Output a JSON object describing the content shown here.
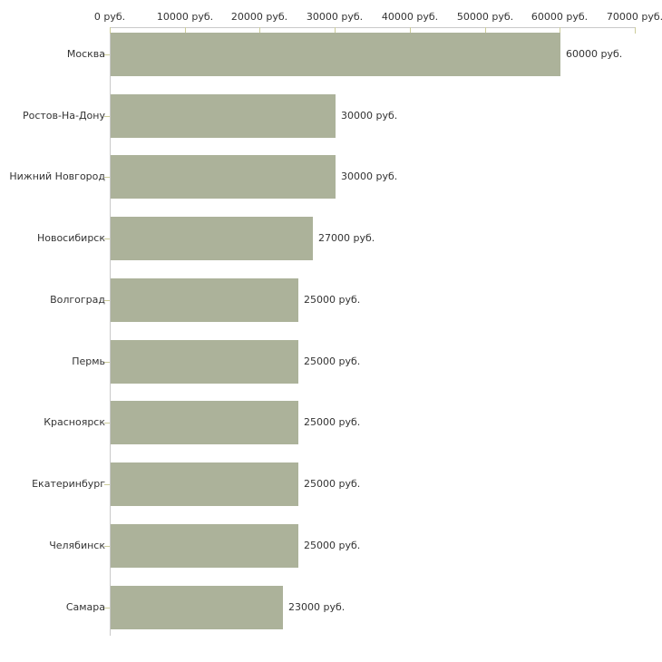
{
  "chart_data": {
    "type": "bar",
    "orientation": "horizontal",
    "categories": [
      "Москва",
      "Ростов-На-Дону",
      "Нижний Новгород",
      "Новосибирск",
      "Волгоград",
      "Пермь",
      "Красноярск",
      "Екатеринбург",
      "Челябинск",
      "Самара"
    ],
    "values": [
      60000,
      30000,
      30000,
      27000,
      25000,
      25000,
      25000,
      25000,
      25000,
      23000
    ],
    "value_labels": [
      "60000 руб.",
      "30000 руб.",
      "30000 руб.",
      "27000 руб.",
      "25000 руб.",
      "25000 руб.",
      "25000 руб.",
      "25000 руб.",
      "25000 руб.",
      "23000 руб."
    ],
    "x_ticks": [
      "0 руб.",
      "10000 руб.",
      "20000 руб.",
      "30000 руб.",
      "40000 руб.",
      "50000 руб.",
      "60000 руб.",
      "70000 руб."
    ],
    "x_tick_values": [
      0,
      10000,
      20000,
      30000,
      40000,
      50000,
      60000,
      70000
    ],
    "xlim": [
      0,
      70000
    ],
    "grid": false,
    "legend": "none",
    "bar_color": "#acb29a",
    "axis_color": "#c9c9c9",
    "tick_color": "#cccc99",
    "text_color": "#333333"
  }
}
